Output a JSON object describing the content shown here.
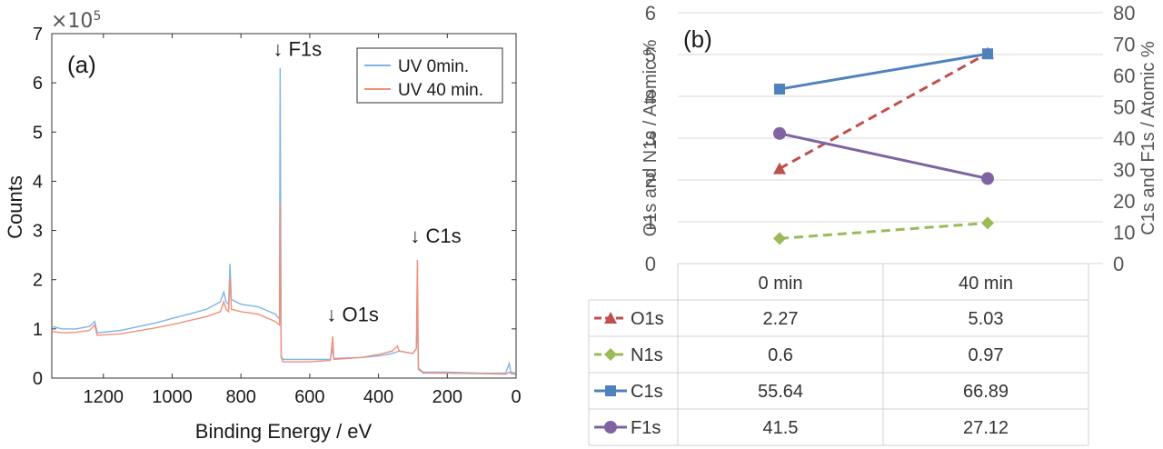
{
  "chart_data": [
    {
      "type": "line",
      "panel_label": "(a)",
      "xlabel": "Binding Energy / eV",
      "ylabel": "Counts",
      "y_multiplier": "×10",
      "y_exponent": "5",
      "xlim": [
        1350,
        0
      ],
      "ylim": [
        0,
        7
      ],
      "x_ticks": [
        1200,
        1000,
        800,
        600,
        400,
        200,
        0
      ],
      "y_ticks": [
        0,
        1,
        2,
        3,
        4,
        5,
        6,
        7
      ],
      "annotations": [
        {
          "text": "↓ F1s",
          "x": 686,
          "y": 6.55
        },
        {
          "text": "↓ O1s",
          "x": 530,
          "y": 1.15
        },
        {
          "text": "↓ C1s",
          "x": 287,
          "y": 2.75
        }
      ],
      "legend": {
        "placement": "top-right",
        "entries": [
          "UV 0min.",
          "UV 40 min."
        ]
      },
      "series": [
        {
          "name": "UV 0min.",
          "color": "#7fb4e6",
          "points": [
            [
              1350,
              1.05
            ],
            [
              1320,
              1.0
            ],
            [
              1280,
              1.0
            ],
            [
              1240,
              1.05
            ],
            [
              1225,
              1.15
            ],
            [
              1218,
              0.92
            ],
            [
              1150,
              0.97
            ],
            [
              1050,
              1.12
            ],
            [
              980,
              1.25
            ],
            [
              950,
              1.3
            ],
            [
              900,
              1.4
            ],
            [
              860,
              1.55
            ],
            [
              850,
              1.75
            ],
            [
              843,
              1.55
            ],
            [
              836,
              1.5
            ],
            [
              832,
              2.32
            ],
            [
              828,
              1.6
            ],
            [
              800,
              1.5
            ],
            [
              750,
              1.45
            ],
            [
              700,
              1.3
            ],
            [
              688,
              1.2
            ],
            [
              686,
              6.3
            ],
            [
              683,
              0.45
            ],
            [
              678,
              0.38
            ],
            [
              600,
              0.38
            ],
            [
              540,
              0.38
            ],
            [
              533,
              0.62
            ],
            [
              530,
              0.4
            ],
            [
              450,
              0.42
            ],
            [
              400,
              0.45
            ],
            [
              360,
              0.5
            ],
            [
              340,
              0.55
            ],
            [
              300,
              0.5
            ],
            [
              290,
              0.6
            ],
            [
              287,
              1.25
            ],
            [
              284,
              0.2
            ],
            [
              270,
              0.12
            ],
            [
              200,
              0.12
            ],
            [
              100,
              0.1
            ],
            [
              30,
              0.1
            ],
            [
              20,
              0.3
            ],
            [
              15,
              0.12
            ],
            [
              0,
              0.1
            ]
          ]
        },
        {
          "name": "UV 40 min.",
          "color": "#f0907a",
          "points": [
            [
              1350,
              0.95
            ],
            [
              1320,
              0.92
            ],
            [
              1280,
              0.93
            ],
            [
              1240,
              0.97
            ],
            [
              1225,
              1.08
            ],
            [
              1218,
              0.87
            ],
            [
              1150,
              0.9
            ],
            [
              1050,
              1.02
            ],
            [
              980,
              1.12
            ],
            [
              950,
              1.17
            ],
            [
              900,
              1.25
            ],
            [
              860,
              1.35
            ],
            [
              850,
              1.55
            ],
            [
              843,
              1.4
            ],
            [
              836,
              1.35
            ],
            [
              832,
              2.05
            ],
            [
              828,
              1.4
            ],
            [
              800,
              1.35
            ],
            [
              750,
              1.3
            ],
            [
              700,
              1.15
            ],
            [
              688,
              1.08
            ],
            [
              686,
              3.55
            ],
            [
              683,
              0.42
            ],
            [
              678,
              0.33
            ],
            [
              600,
              0.33
            ],
            [
              540,
              0.36
            ],
            [
              533,
              0.85
            ],
            [
              530,
              0.38
            ],
            [
              450,
              0.42
            ],
            [
              400,
              0.48
            ],
            [
              360,
              0.55
            ],
            [
              345,
              0.65
            ],
            [
              340,
              0.55
            ],
            [
              300,
              0.5
            ],
            [
              290,
              0.6
            ],
            [
              287,
              2.4
            ],
            [
              284,
              0.18
            ],
            [
              270,
              0.1
            ],
            [
              200,
              0.1
            ],
            [
              100,
              0.09
            ],
            [
              30,
              0.08
            ],
            [
              20,
              0.12
            ],
            [
              15,
              0.09
            ],
            [
              0,
              0.08
            ]
          ]
        }
      ]
    },
    {
      "type": "line",
      "panel_label": "(b)",
      "ylabel_left": "O1s and N1s / Atomic %",
      "ylabel_right": "C1s and F1s / Atomic %",
      "ylim_left": [
        0,
        6
      ],
      "ylim_right": [
        0,
        80
      ],
      "y_ticks_left": [
        0,
        1,
        2,
        3,
        4,
        5,
        6
      ],
      "y_ticks_right": [
        0,
        10,
        20,
        30,
        40,
        50,
        60,
        70,
        80
      ],
      "categories": [
        "0 min",
        "40 min"
      ],
      "gridlines": true,
      "series": [
        {
          "name": "O1s",
          "axis": "left",
          "values": [
            2.27,
            5.03
          ],
          "color": "#c0504d",
          "marker": "triangle",
          "dash": true
        },
        {
          "name": "N1s",
          "axis": "left",
          "values": [
            0.6,
            0.97
          ],
          "color": "#9bbb59",
          "marker": "diamond",
          "dash": true
        },
        {
          "name": "C1s",
          "axis": "right",
          "values": [
            55.64,
            66.89
          ],
          "color": "#4f81bd",
          "marker": "square",
          "dash": false
        },
        {
          "name": "F1s",
          "axis": "right",
          "values": [
            41.5,
            27.12
          ],
          "color": "#8064a2",
          "marker": "circle",
          "dash": false
        }
      ],
      "table": {
        "columns": [
          "0 min",
          "40 min"
        ],
        "rows": [
          {
            "label": "O1s",
            "values": [
              "2.27",
              "5.03"
            ]
          },
          {
            "label": "N1s",
            "values": [
              "0.6",
              "0.97"
            ]
          },
          {
            "label": "C1s",
            "values": [
              "55.64",
              "66.89"
            ]
          },
          {
            "label": "F1s",
            "values": [
              "41.5",
              "27.12"
            ]
          }
        ]
      }
    }
  ]
}
